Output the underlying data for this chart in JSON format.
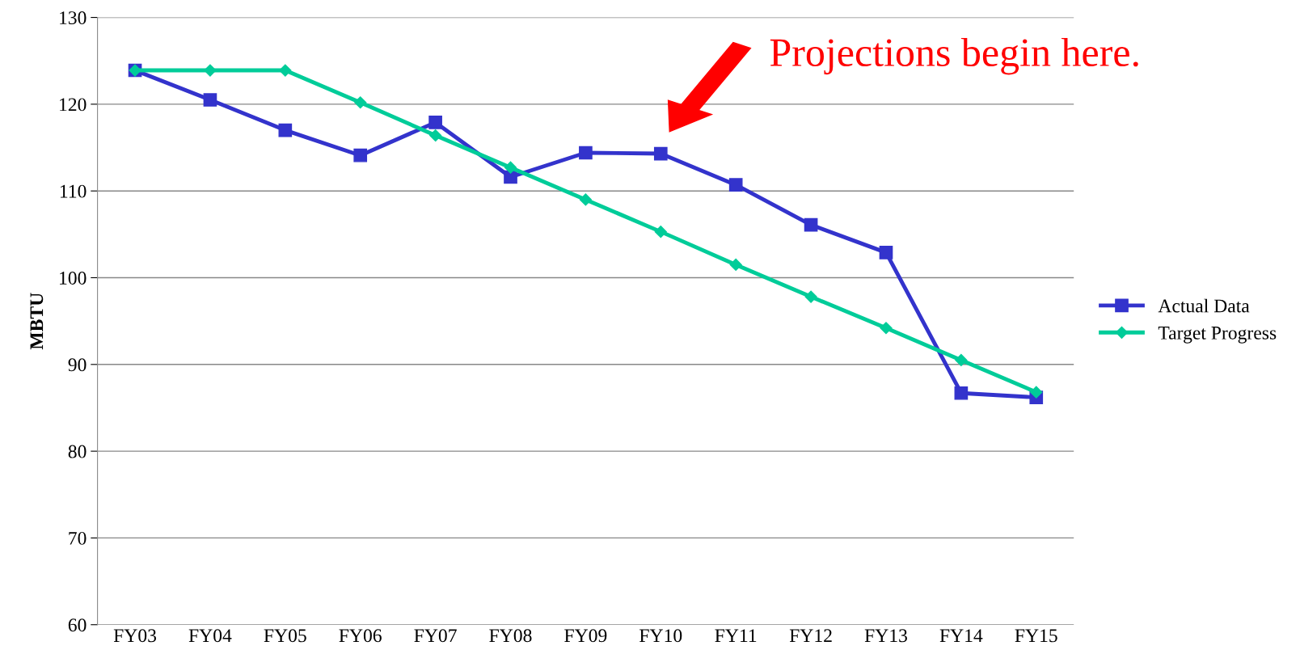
{
  "chart_data": {
    "type": "line",
    "ylabel": "MBTU",
    "categories": [
      "FY03",
      "FY04",
      "FY05",
      "FY06",
      "FY07",
      "FY08",
      "FY09",
      "FY10",
      "FY11",
      "FY12",
      "FY13",
      "FY14",
      "FY15"
    ],
    "series": [
      {
        "name": "Actual Data",
        "color": "#3333cc",
        "marker": "square",
        "values": [
          123.9,
          120.5,
          117.0,
          114.1,
          117.9,
          111.6,
          114.4,
          114.3,
          110.7,
          106.1,
          102.9,
          86.7,
          86.2
        ]
      },
      {
        "name": "Target Progress",
        "color": "#00cc99",
        "marker": "diamond",
        "values": [
          123.9,
          123.9,
          123.9,
          120.2,
          116.4,
          112.7,
          109.0,
          105.3,
          101.5,
          97.8,
          94.2,
          90.5,
          86.8
        ]
      }
    ],
    "ylim": [
      60,
      130
    ],
    "yticks": [
      60,
      70,
      80,
      90,
      100,
      110,
      120,
      130
    ],
    "grid": "y",
    "legend": "right",
    "line_style": "solid",
    "annotations": [
      "Projections begin here."
    ]
  }
}
